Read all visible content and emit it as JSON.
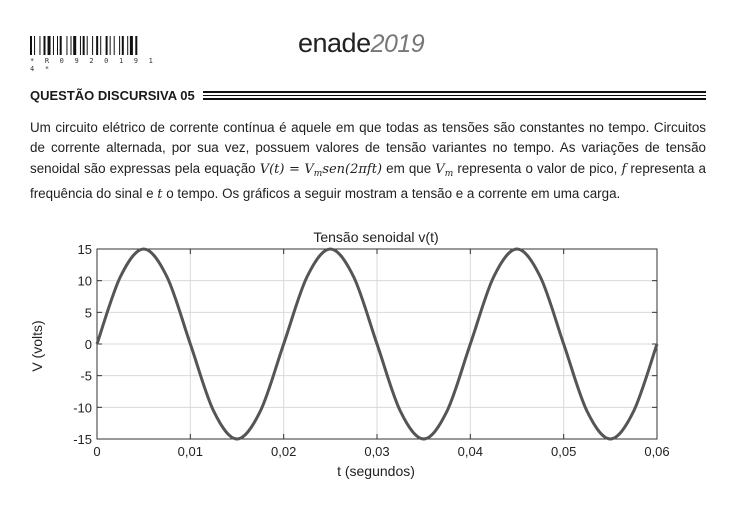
{
  "header": {
    "barcode_text": "* R 0 9 2 0 1 9 1 4 *",
    "logo_main": "enade",
    "logo_year": "2019"
  },
  "question": {
    "title": "QUESTÃO DISCURSIVA 05",
    "paragraph": {
      "p1": "Um circuito elétrico de corrente contínua é aquele em que todas as tensões são constantes no tempo. Circuitos de corrente alternada, por sua vez, possuem valores de tensão variantes no tempo. As variações de tensão senoidal são expressas pela equação ",
      "eq": "V(t) = V",
      "eq_sub": "m",
      "eq_rest": "sen(2πft)",
      "p2": " em que ",
      "vm": "V",
      "vm_sub": "m",
      "p3": " representa o valor de pico, ",
      "f": "f",
      "p4": " representa a frequência do sinal e ",
      "t": "t",
      "p5": " o tempo. Os gráficos a seguir mostram a tensão e a corrente em uma carga."
    }
  },
  "chart_data": {
    "type": "line",
    "title": "Tensão senoidal v(t)",
    "xlabel": "t (segundos)",
    "ylabel": "V (volts)",
    "xlim": [
      0,
      0.06
    ],
    "ylim": [
      -15,
      15
    ],
    "xticks": [
      0,
      0.01,
      0.02,
      0.03,
      0.04,
      0.05,
      0.06
    ],
    "xtick_labels": [
      "0",
      "0,01",
      "0,02",
      "0,03",
      "0,04",
      "0,05",
      "0,06"
    ],
    "yticks": [
      15,
      10,
      5,
      0,
      -5,
      -10,
      -15
    ],
    "ytick_labels": [
      "15",
      "10",
      "5",
      "0",
      "-5",
      "-10",
      "-15"
    ],
    "grid": true,
    "series": [
      {
        "color": "#555555",
        "x": [
          0,
          0.0025,
          0.005,
          0.0075,
          0.01,
          0.0125,
          0.015,
          0.0175,
          0.02,
          0.0225,
          0.025,
          0.0275,
          0.03,
          0.0325,
          0.035,
          0.0375,
          0.04,
          0.0425,
          0.045,
          0.0475,
          0.05,
          0.0525,
          0.055,
          0.0575,
          0.06
        ],
        "y": [
          0,
          10.6,
          15,
          10.6,
          0,
          -10.6,
          -15,
          -10.6,
          0,
          10.6,
          15,
          10.6,
          0,
          -10.6,
          -15,
          -10.6,
          0,
          10.6,
          15,
          10.6,
          0,
          -10.6,
          -15,
          -10.6,
          0
        ]
      }
    ]
  }
}
